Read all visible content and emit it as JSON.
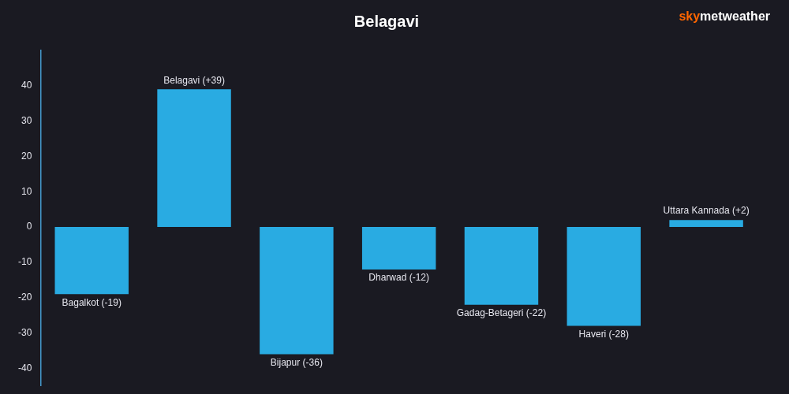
{
  "chart_data": {
    "type": "bar",
    "title": "Belagavi",
    "categories": [
      "Bagalkot",
      "Belagavi",
      "Bijapur",
      "Dharwad",
      "Gadag-Betageri",
      "Haveri",
      "Uttara Kannada"
    ],
    "values": [
      -19,
      39,
      -36,
      -12,
      -22,
      -28,
      2
    ],
    "value_labels": [
      "Bagalkot (-19)",
      "Belagavi (+39)",
      "Bijapur (-36)",
      "Dharwad (-12)",
      "Gadag-Betageri (-22)",
      "Haveri (-28)",
      "Uttara Kannada (+2)"
    ],
    "data_labels": true,
    "color": "#29ABE2",
    "ylim": [
      -45,
      50
    ],
    "yticks": [
      -40,
      -30,
      -20,
      -10,
      0,
      10,
      20,
      30,
      40
    ],
    "grid": false,
    "tick_labels": "y",
    "annotations": [
      {
        "text": "sky",
        "color": "#ff6600"
      },
      {
        "text": "metweather",
        "color": "#ffffff"
      }
    ]
  }
}
